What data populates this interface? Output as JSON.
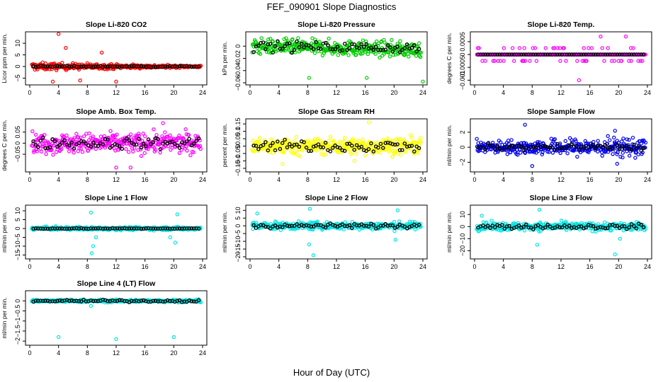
{
  "figure": {
    "title": "FEF_090901  Slope Diagnostics",
    "xlabel": "Hour of Day (UTC)"
  },
  "chart_data": [
    {
      "type": "scatter",
      "title": "Slope Li-820 CO2",
      "ylabel": "Licor ppm per min.",
      "xlim": [
        0,
        24
      ],
      "ylim": [
        -7,
        14
      ],
      "xticks": [
        0,
        4,
        8,
        12,
        16,
        20,
        24
      ],
      "yticks": [
        -5,
        0,
        5,
        10
      ],
      "series_color": "#ff0000",
      "noise": 1.5,
      "noise_end": 0.3,
      "outliers": [
        [
          4,
          14
        ],
        [
          5,
          8
        ],
        [
          3.2,
          -6.5
        ],
        [
          7,
          -6
        ],
        [
          10,
          6
        ],
        [
          12,
          -6.5
        ]
      ],
      "black_noise": 0.3
    },
    {
      "type": "scatter",
      "title": "Slope Li-820 Pressure",
      "ylabel": "kPa per min.",
      "xlim": [
        0,
        24
      ],
      "ylim": [
        -0.06,
        0.02
      ],
      "xticks": [
        0,
        4,
        8,
        12,
        16,
        20,
        24
      ],
      "yticks": [
        -0.06,
        -0.04,
        -0.02,
        0
      ],
      "series_color": "#00cc00",
      "noise": 0.011,
      "noise_end": 0.011,
      "center": 0.0,
      "trend_end": -0.006,
      "outliers": [
        [
          8.2,
          -0.052
        ],
        [
          16.2,
          -0.052
        ],
        [
          24,
          -0.058
        ]
      ],
      "black_noise": 0.008
    },
    {
      "type": "scatter",
      "title": "Slope Li-820 Temp.",
      "ylabel": "degrees C per min.",
      "xlim": [
        0,
        24
      ],
      "ylim": [
        -0.0011,
        0.0008
      ],
      "xticks": [
        0,
        4,
        8,
        12,
        16,
        20,
        24
      ],
      "yticks": [
        -0.001,
        -0.0005,
        0,
        0.0005
      ],
      "series_color": "#ff00ff",
      "quantized": 0.00025,
      "noise": 0.00025,
      "noise_end": 0.00025,
      "outliers": [
        [
          14.5,
          -0.001
        ],
        [
          17.5,
          0.0007
        ],
        [
          21,
          0.0007
        ]
      ],
      "black_noise": 0.0001
    },
    {
      "type": "scatter",
      "title": "Slope Amb. Box Temp.",
      "ylabel": "degrees C per min.",
      "xlim": [
        0,
        24
      ],
      "ylim": [
        -0.12,
        0.1
      ],
      "xticks": [
        0,
        4,
        8,
        12,
        16,
        20,
        24
      ],
      "yticks": [
        -0.05,
        0,
        0.05
      ],
      "series_color": "#ff00ff",
      "noise": 0.04,
      "noise_end": 0.04,
      "outliers": [
        [
          18.5,
          0.09
        ],
        [
          12,
          -0.11
        ],
        [
          14,
          -0.11
        ]
      ],
      "black_noise": 0.025
    },
    {
      "type": "scatter",
      "title": "Slope Gas Stream RH",
      "ylabel": "percent per min.",
      "xlim": [
        0,
        24
      ],
      "ylim": [
        -0.16,
        0.17
      ],
      "xticks": [
        0,
        4,
        8,
        12,
        16,
        20,
        24
      ],
      "yticks": [
        -0.15,
        -0.1,
        -0.05,
        0,
        0.05,
        0.1,
        0.15
      ],
      "series_color": "#ffff00",
      "noise": 0.05,
      "noise_end": 0.05,
      "outliers": [
        [
          16.5,
          0.16
        ],
        [
          4.5,
          -0.12
        ],
        [
          14.5,
          -0.1
        ]
      ],
      "black_noise": 0.04
    },
    {
      "type": "scatter",
      "title": "Slope Sample Flow",
      "ylabel": "ml/min per min.",
      "xlim": [
        0,
        24
      ],
      "ylim": [
        -3,
        3.5
      ],
      "xticks": [
        0,
        4,
        8,
        12,
        16,
        20,
        24
      ],
      "yticks": [
        -2,
        0,
        2
      ],
      "series_color": "#0000ee",
      "noise": 0.7,
      "noise_end": 1.2,
      "outliers": [
        [
          7,
          3
        ],
        [
          8,
          -2.5
        ],
        [
          19.5,
          2.2
        ],
        [
          19.8,
          -2.2
        ]
      ],
      "black_noise": 0.4
    },
    {
      "type": "scatter",
      "title": "Slope Line 1 Flow",
      "ylabel": "ml/min per min.",
      "xlim": [
        0,
        24
      ],
      "ylim": [
        -16,
        12
      ],
      "xticks": [
        0,
        4,
        8,
        12,
        16,
        20,
        24
      ],
      "yticks": [
        -15,
        -10,
        -5,
        0,
        5,
        10
      ],
      "series_color": "#00e5e5",
      "noise": 0.8,
      "noise_end": 0.8,
      "outliers": [
        [
          8.5,
          9
        ],
        [
          8.8,
          -10
        ],
        [
          8.6,
          -14
        ],
        [
          9.2,
          -5
        ],
        [
          19.5,
          -5
        ],
        [
          20.2,
          -8
        ],
        [
          20.5,
          8
        ]
      ],
      "black_noise": 0.2
    },
    {
      "type": "scatter",
      "title": "Slope Line 2 Flow",
      "ylabel": "ml/min per min.",
      "xlim": [
        0,
        24
      ],
      "ylim": [
        -20,
        12
      ],
      "xticks": [
        0,
        4,
        8,
        12,
        16,
        20,
        24
      ],
      "yticks": [
        -20,
        -15,
        -10,
        -5,
        0,
        5,
        10
      ],
      "series_color": "#00e5e5",
      "noise": 2.2,
      "noise_end": 2.2,
      "outliers": [
        [
          8.3,
          11
        ],
        [
          8.8,
          -19
        ],
        [
          8.2,
          -12
        ],
        [
          20.5,
          10
        ],
        [
          20.2,
          -9
        ],
        [
          1,
          8
        ]
      ],
      "black_noise": 1.5
    },
    {
      "type": "scatter",
      "title": "Slope Line 3 Flow",
      "ylabel": "ml/min per min.",
      "xlim": [
        0,
        24
      ],
      "ylim": [
        -25,
        16
      ],
      "xticks": [
        0,
        4,
        8,
        12,
        16,
        20,
        24
      ],
      "yticks": [
        -20,
        -10,
        0,
        10
      ],
      "series_color": "#00e5e5",
      "noise": 3,
      "noise_end": 3,
      "outliers": [
        [
          9,
          14
        ],
        [
          8.7,
          -15
        ],
        [
          19.5,
          -23
        ],
        [
          20.2,
          -10
        ],
        [
          1,
          9
        ]
      ],
      "black_noise": 2
    },
    {
      "type": "scatter",
      "title": "Slope Line 4 (LT) Flow",
      "ylabel": "ml/min per min.",
      "xlim": [
        0,
        24
      ],
      "ylim": [
        -2.1,
        0.4
      ],
      "xticks": [
        0,
        4,
        8,
        12,
        16,
        20,
        24
      ],
      "yticks": [
        -2,
        -1.5,
        -1,
        -0.5,
        0
      ],
      "series_color": "#00e5e5",
      "noise": 0.06,
      "noise_end": 0.06,
      "outliers": [
        [
          4,
          -1.8
        ],
        [
          12,
          -1.9
        ],
        [
          20,
          -1.8
        ],
        [
          8.5,
          -0.25
        ]
      ],
      "black_noise": 0.05
    }
  ]
}
